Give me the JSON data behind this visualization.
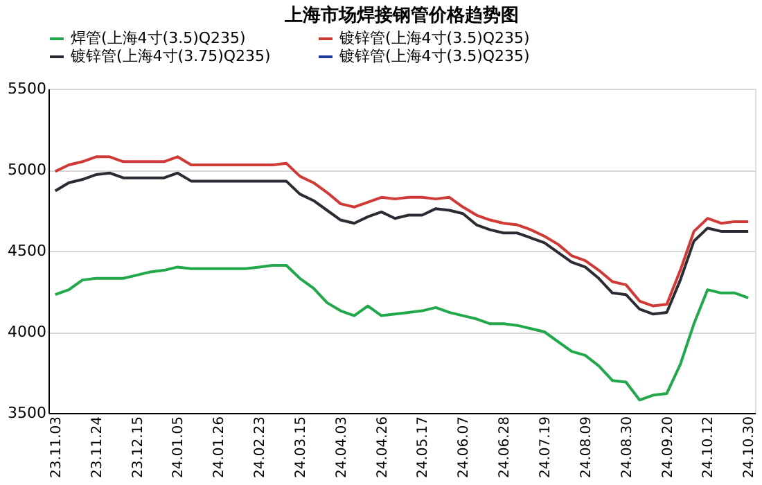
{
  "chart_data": {
    "type": "line",
    "title": "上海市场焊接钢管价格趋势图",
    "categories": [
      "23.11.03",
      null,
      null,
      "23.11.24",
      null,
      null,
      "23.12.15",
      null,
      null,
      "24.01.05",
      null,
      null,
      "24.01.26",
      null,
      null,
      "24.02.23",
      null,
      null,
      "24.03.15",
      null,
      null,
      "24.04.03",
      null,
      null,
      "24.04.26",
      null,
      null,
      "24.05.17",
      null,
      null,
      "24.06.07",
      null,
      null,
      "24.06.28",
      null,
      null,
      "24.07.19",
      null,
      null,
      "24.08.09",
      null,
      null,
      "24.08.30",
      null,
      null,
      "24.09.20",
      null,
      null,
      "24.10.12",
      null,
      null,
      "24.10.30"
    ],
    "series": [
      {
        "name": "焊管(上海4寸(3.5)Q235)",
        "color": "#22a84a",
        "values": [
          4230,
          4260,
          4320,
          4330,
          4330,
          4330,
          4350,
          4370,
          4380,
          4400,
          4390,
          4390,
          4390,
          4390,
          4390,
          4400,
          4410,
          4410,
          4330,
          4270,
          4180,
          4130,
          4100,
          4160,
          4100,
          4110,
          4120,
          4130,
          4150,
          4120,
          4100,
          4080,
          4050,
          4050,
          4040,
          4020,
          4000,
          3940,
          3880,
          3855,
          3790,
          3700,
          3690,
          3580,
          3610,
          3620,
          3800,
          4050,
          4260,
          4240,
          4240,
          4210
        ]
      },
      {
        "name": "镀锌管(上海4寸(3.5)Q235)",
        "color": "#d03a36",
        "values": [
          4990,
          5030,
          5050,
          5080,
          5080,
          5050,
          5050,
          5050,
          5050,
          5080,
          5030,
          5030,
          5030,
          5030,
          5030,
          5030,
          5030,
          5040,
          4960,
          4920,
          4860,
          4790,
          4770,
          4800,
          4830,
          4820,
          4830,
          4830,
          4820,
          4830,
          4770,
          4720,
          4690,
          4670,
          4660,
          4630,
          4590,
          4540,
          4470,
          4440,
          4380,
          4310,
          4290,
          4190,
          4160,
          4170,
          4380,
          4620,
          4700,
          4670,
          4680,
          4680
        ]
      },
      {
        "name": "镀锌管(上海4寸(3.75)Q235)",
        "color": "#2b2b33",
        "values": [
          4870,
          4920,
          4940,
          4970,
          4980,
          4950,
          4950,
          4950,
          4950,
          4980,
          4930,
          4930,
          4930,
          4930,
          4930,
          4930,
          4930,
          4930,
          4850,
          4810,
          4750,
          4690,
          4670,
          4710,
          4740,
          4700,
          4720,
          4720,
          4760,
          4750,
          4730,
          4660,
          4630,
          4610,
          4610,
          4580,
          4550,
          4490,
          4430,
          4400,
          4330,
          4240,
          4230,
          4140,
          4110,
          4120,
          4320,
          4560,
          4640,
          4620,
          4620,
          4620
        ]
      },
      {
        "name": "镀锌管(上海4寸(3.5)Q235)",
        "color": "#1f3a9e",
        "values": [
          null,
          null,
          null,
          null,
          null,
          null,
          null,
          null,
          null,
          null,
          null,
          null,
          null,
          null,
          null,
          null,
          null,
          null,
          null,
          null,
          null,
          null,
          null,
          null,
          null,
          null,
          null,
          null,
          null,
          null,
          null,
          null,
          null,
          null,
          null,
          null,
          null,
          null,
          null,
          null,
          null,
          null,
          null,
          null,
          null,
          null,
          null,
          null,
          null,
          null,
          null,
          null
        ]
      }
    ],
    "ylim": [
      3500,
      5500
    ],
    "yticks": [
      3500,
      4000,
      4500,
      5000,
      5500
    ],
    "grid": "y",
    "legend": "top",
    "marker": "none",
    "line_style": "solid"
  }
}
